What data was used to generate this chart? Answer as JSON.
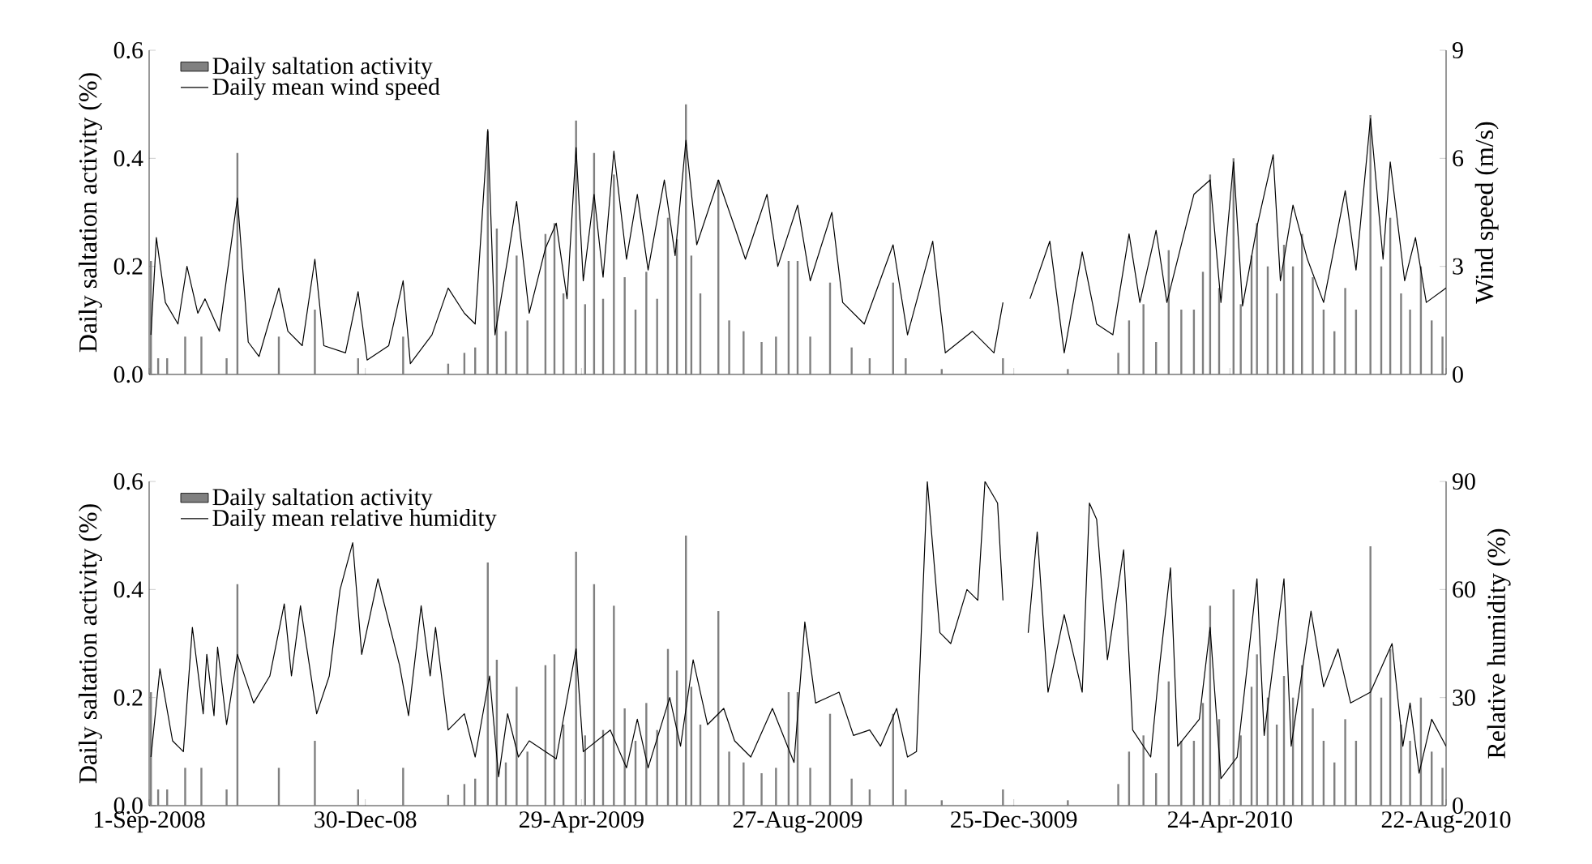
{
  "chart_data": [
    {
      "type": "bar",
      "ylabel": "Daily saltation activity (%)",
      "y2label": "Wind speed (m/s)",
      "legend": "top left",
      "tick_labels": "y",
      "xlim": [
        "2008-09-01",
        "2010-08-22"
      ],
      "xticks": [
        {
          "value": "2008-09-01",
          "label": null
        },
        {
          "value": "2008-12-30",
          "label": null
        },
        {
          "value": "2009-04-29",
          "label": null
        },
        {
          "value": "2009-08-27",
          "label": null
        },
        {
          "value": "2009-12-25",
          "label": null
        },
        {
          "value": "2010-04-24",
          "label": null
        },
        {
          "value": "2010-08-22",
          "label": null
        }
      ],
      "ylim": [
        0,
        0.6
      ],
      "yticks": [
        {
          "value": 0,
          "label": "0.0"
        },
        {
          "value": 0.2,
          "label": "0.2"
        },
        {
          "value": 0.4,
          "label": "0.4"
        },
        {
          "value": 0.6,
          "label": "0.6"
        }
      ],
      "y2lim": [
        0,
        9
      ],
      "y2ticks": [
        0,
        3,
        6,
        9
      ],
      "series": [
        {
          "name": "Daily saltation activity",
          "color": "#808080",
          "x": [
            "2008-09-02",
            "2008-09-06",
            "2008-09-11",
            "2008-09-21",
            "2008-09-30",
            "2008-10-14",
            "2008-10-20",
            "2008-11-12",
            "2008-12-02",
            "2008-12-26",
            "2009-01-20",
            "2009-02-14",
            "2009-02-23",
            "2009-03-01",
            "2009-03-08",
            "2009-03-13",
            "2009-03-18",
            "2009-03-24",
            "2009-03-30",
            "2009-04-09",
            "2009-04-14",
            "2009-04-19",
            "2009-04-26",
            "2009-05-01",
            "2009-05-06",
            "2009-05-11",
            "2009-05-17",
            "2009-05-23",
            "2009-05-29",
            "2009-06-04",
            "2009-06-10",
            "2009-06-16",
            "2009-06-21",
            "2009-06-26",
            "2009-06-29",
            "2009-07-04",
            "2009-07-14",
            "2009-07-20",
            "2009-07-28",
            "2009-08-07",
            "2009-08-15",
            "2009-08-22",
            "2009-08-27",
            "2009-09-03",
            "2009-09-14",
            "2009-09-26",
            "2009-10-06",
            "2009-10-19",
            "2009-10-26",
            "2009-11-15",
            "2009-12-19",
            "2010-01-24",
            "2010-02-21",
            "2010-02-27",
            "2010-03-07",
            "2010-03-14",
            "2010-03-21",
            "2010-03-28",
            "2010-04-04",
            "2010-04-09",
            "2010-04-13",
            "2010-04-18",
            "2010-04-26",
            "2010-04-30",
            "2010-05-06",
            "2010-05-09",
            "2010-05-15",
            "2010-05-20",
            "2010-05-24",
            "2010-05-29",
            "2010-06-03",
            "2010-06-09",
            "2010-06-15",
            "2010-06-21",
            "2010-06-27",
            "2010-07-03",
            "2010-07-11",
            "2010-07-17",
            "2010-07-22",
            "2010-07-28",
            "2010-08-02",
            "2010-08-08",
            "2010-08-14",
            "2010-08-20"
          ],
          "values": [
            0.21,
            0.03,
            0.03,
            0.07,
            0.07,
            0.03,
            0.41,
            0.07,
            0.12,
            0.03,
            0.07,
            0.02,
            0.04,
            0.05,
            0.45,
            0.27,
            0.08,
            0.22,
            0.1,
            0.26,
            0.28,
            0.15,
            0.47,
            0.13,
            0.41,
            0.14,
            0.37,
            0.18,
            0.12,
            0.19,
            0.14,
            0.29,
            0.25,
            0.5,
            0.22,
            0.15,
            0.36,
            0.1,
            0.08,
            0.06,
            0.07,
            0.21,
            0.21,
            0.07,
            0.17,
            0.05,
            0.03,
            0.17,
            0.03,
            0.01,
            0.03,
            0.01,
            0.04,
            0.1,
            0.13,
            0.06,
            0.23,
            0.12,
            0.12,
            0.19,
            0.37,
            0.16,
            0.4,
            0.13,
            0.22,
            0.28,
            0.2,
            0.15,
            0.24,
            0.2,
            0.26,
            0.18,
            0.12,
            0.08,
            0.16,
            0.12,
            0.48,
            0.2,
            0.29,
            0.15,
            0.12,
            0.2,
            0.1,
            0.07
          ]
        },
        {
          "name": "Daily mean wind speed",
          "type": "line",
          "axis": "y2",
          "color": "#000000",
          "x": [
            "2008-09-02",
            "2008-09-05",
            "2008-09-10",
            "2008-09-17",
            "2008-09-22",
            "2008-09-28",
            "2008-10-02",
            "2008-10-10",
            "2008-10-20",
            "2008-10-26",
            "2008-11-01",
            "2008-11-12",
            "2008-11-17",
            "2008-11-25",
            "2008-12-02",
            "2008-12-07",
            "2008-12-19",
            "2008-12-26",
            "2008-12-31",
            "2009-01-12",
            "2009-01-20",
            "2009-01-24",
            "2009-02-05",
            "2009-02-14",
            "2009-02-23",
            "2009-03-01",
            "2009-03-08",
            "2009-03-12",
            "2009-03-19",
            "2009-03-24",
            "2009-03-31",
            "2009-04-09",
            "2009-04-15",
            "2009-04-21",
            "2009-04-26",
            "2009-04-30",
            "2009-05-06",
            "2009-05-11",
            "2009-05-17",
            "2009-05-24",
            "2009-05-30",
            "2009-06-05",
            "2009-06-14",
            "2009-06-20",
            "2009-06-26",
            "2009-07-02",
            "2009-07-14",
            "2009-07-23",
            "2009-07-29",
            "2009-08-10",
            "2009-08-16",
            "2009-08-27",
            "2009-09-03",
            "2009-09-15",
            "2009-09-21",
            "2009-10-03",
            "2009-10-19",
            "2009-10-27",
            "2009-11-10",
            "2009-11-17",
            "2009-12-02",
            "2009-12-14",
            "2009-12-19",
            "2009-12-25",
            "2010-01-03",
            "2010-01-14",
            "2010-01-22",
            "2010-02-01",
            "2010-02-09",
            "2010-02-18",
            "2010-02-27",
            "2010-03-05",
            "2010-03-14",
            "2010-03-20",
            "2010-04-04",
            "2010-04-13",
            "2010-04-19",
            "2010-04-26",
            "2010-05-01",
            "2010-05-09",
            "2010-05-18",
            "2010-05-22",
            "2010-05-29",
            "2010-06-06",
            "2010-06-15",
            "2010-06-27",
            "2010-07-03",
            "2010-07-11",
            "2010-07-18",
            "2010-07-22",
            "2010-07-30",
            "2010-08-05",
            "2010-08-11",
            "2010-08-22"
          ],
          "values": [
            1.1,
            3.8,
            2.0,
            1.4,
            3.0,
            1.7,
            2.1,
            1.2,
            4.9,
            0.9,
            0.5,
            2.4,
            1.2,
            0.8,
            3.2,
            0.8,
            0.6,
            2.3,
            0.4,
            0.8,
            2.6,
            0.3,
            1.1,
            2.4,
            1.7,
            1.4,
            6.8,
            1.1,
            3.2,
            4.8,
            1.7,
            3.5,
            4.2,
            2.1,
            6.3,
            2.6,
            5.0,
            2.7,
            6.2,
            3.2,
            5.0,
            2.9,
            5.4,
            3.3,
            6.5,
            3.6,
            5.4,
            4.1,
            3.2,
            5.0,
            3.0,
            4.7,
            2.6,
            4.5,
            2.0,
            1.4,
            3.6,
            1.1,
            3.7,
            0.6,
            1.2,
            0.6,
            2.0,
            null,
            2.1,
            3.7,
            0.6,
            3.4,
            1.4,
            1.1,
            3.9,
            2.0,
            4.0,
            2.0,
            5.0,
            5.4,
            2.0,
            5.9,
            1.9,
            4.1,
            6.1,
            2.6,
            4.7,
            3.2,
            2.0,
            5.1,
            2.9,
            7.1,
            3.2,
            5.9,
            2.6,
            3.8,
            2.0,
            2.4
          ]
        }
      ]
    },
    {
      "type": "bar",
      "ylabel": "Daily saltation activity (%)",
      "y2label": "Relative humidity (%)",
      "legend": "top left",
      "xlim": [
        "2008-09-01",
        "2010-08-22"
      ],
      "xticks": [
        {
          "value": "2008-09-01",
          "label": "1-Sep-2008"
        },
        {
          "value": "2008-12-30",
          "label": "30-Dec-08"
        },
        {
          "value": "2009-04-29",
          "label": "29-Apr-2009"
        },
        {
          "value": "2009-08-27",
          "label": "27-Aug-2009"
        },
        {
          "value": "2009-12-25",
          "label": "25-Dec-3009"
        },
        {
          "value": "2010-04-24",
          "label": "24-Apr-2010"
        },
        {
          "value": "2010-08-22",
          "label": "22-Aug-2010"
        }
      ],
      "ylim": [
        0,
        0.6
      ],
      "yticks": [
        {
          "value": 0,
          "label": "0.0"
        },
        {
          "value": 0.2,
          "label": "0.2"
        },
        {
          "value": 0.4,
          "label": "0.4"
        },
        {
          "value": 0.6,
          "label": "0.6"
        }
      ],
      "y2lim": [
        0,
        90
      ],
      "y2ticks": [
        0,
        30,
        60,
        90
      ],
      "series": [
        {
          "name": "Daily saltation activity",
          "color": "#808080",
          "x": [
            "2008-09-02",
            "2008-09-06",
            "2008-09-11",
            "2008-09-21",
            "2008-09-30",
            "2008-10-14",
            "2008-10-20",
            "2008-11-12",
            "2008-12-02",
            "2008-12-26",
            "2009-01-20",
            "2009-02-14",
            "2009-02-23",
            "2009-03-01",
            "2009-03-08",
            "2009-03-13",
            "2009-03-18",
            "2009-03-24",
            "2009-03-30",
            "2009-04-09",
            "2009-04-14",
            "2009-04-19",
            "2009-04-26",
            "2009-05-01",
            "2009-05-06",
            "2009-05-11",
            "2009-05-17",
            "2009-05-23",
            "2009-05-29",
            "2009-06-04",
            "2009-06-10",
            "2009-06-16",
            "2009-06-21",
            "2009-06-26",
            "2009-06-29",
            "2009-07-04",
            "2009-07-14",
            "2009-07-20",
            "2009-07-28",
            "2009-08-07",
            "2009-08-15",
            "2009-08-22",
            "2009-08-27",
            "2009-09-03",
            "2009-09-14",
            "2009-09-26",
            "2009-10-06",
            "2009-10-19",
            "2009-10-26",
            "2009-11-15",
            "2009-12-19",
            "2010-01-24",
            "2010-02-21",
            "2010-02-27",
            "2010-03-07",
            "2010-03-14",
            "2010-03-21",
            "2010-03-28",
            "2010-04-04",
            "2010-04-09",
            "2010-04-13",
            "2010-04-18",
            "2010-04-26",
            "2010-04-30",
            "2010-05-06",
            "2010-05-09",
            "2010-05-15",
            "2010-05-20",
            "2010-05-24",
            "2010-05-29",
            "2010-06-03",
            "2010-06-09",
            "2010-06-15",
            "2010-06-21",
            "2010-06-27",
            "2010-07-03",
            "2010-07-11",
            "2010-07-17",
            "2010-07-22",
            "2010-07-28",
            "2010-08-02",
            "2010-08-08",
            "2010-08-14",
            "2010-08-20"
          ],
          "values": [
            0.21,
            0.03,
            0.03,
            0.07,
            0.07,
            0.03,
            0.41,
            0.07,
            0.12,
            0.03,
            0.07,
            0.02,
            0.04,
            0.05,
            0.45,
            0.27,
            0.08,
            0.22,
            0.1,
            0.26,
            0.28,
            0.15,
            0.47,
            0.13,
            0.41,
            0.14,
            0.37,
            0.18,
            0.12,
            0.19,
            0.14,
            0.29,
            0.25,
            0.5,
            0.22,
            0.15,
            0.36,
            0.1,
            0.08,
            0.06,
            0.07,
            0.21,
            0.21,
            0.07,
            0.17,
            0.05,
            0.03,
            0.17,
            0.03,
            0.01,
            0.03,
            0.01,
            0.04,
            0.1,
            0.13,
            0.06,
            0.23,
            0.12,
            0.12,
            0.19,
            0.37,
            0.16,
            0.4,
            0.13,
            0.22,
            0.28,
            0.2,
            0.15,
            0.24,
            0.2,
            0.26,
            0.18,
            0.12,
            0.08,
            0.16,
            0.12,
            0.48,
            0.2,
            0.29,
            0.15,
            0.12,
            0.2,
            0.1,
            0.07
          ]
        },
        {
          "name": "Daily mean relative humidity",
          "type": "line",
          "axis": "y2",
          "color": "#000000",
          "x": [
            "2008-09-02",
            "2008-09-07",
            "2008-09-14",
            "2008-09-20",
            "2008-09-25",
            "2008-10-01",
            "2008-10-03",
            "2008-10-07",
            "2008-10-09",
            "2008-10-14",
            "2008-10-20",
            "2008-10-29",
            "2008-11-07",
            "2008-11-15",
            "2008-11-19",
            "2008-11-24",
            "2008-12-03",
            "2008-12-10",
            "2008-12-16",
            "2008-12-23",
            "2008-12-28",
            "2009-01-06",
            "2009-01-12",
            "2009-01-18",
            "2009-01-23",
            "2009-01-30",
            "2009-02-04",
            "2009-02-07",
            "2009-02-14",
            "2009-02-23",
            "2009-03-01",
            "2009-03-09",
            "2009-03-14",
            "2009-03-19",
            "2009-03-25",
            "2009-03-31",
            "2009-04-15",
            "2009-04-26",
            "2009-04-30",
            "2009-05-15",
            "2009-05-24",
            "2009-05-30",
            "2009-06-05",
            "2009-06-17",
            "2009-06-23",
            "2009-06-30",
            "2009-07-08",
            "2009-07-17",
            "2009-07-23",
            "2009-08-01",
            "2009-08-13",
            "2009-08-25",
            "2009-08-31",
            "2009-09-06",
            "2009-09-19",
            "2009-09-27",
            "2009-10-06",
            "2009-10-12",
            "2009-10-21",
            "2009-10-27",
            "2009-11-01",
            "2009-11-07",
            "2009-11-14",
            "2009-11-20",
            "2009-11-29",
            "2009-12-05",
            "2009-12-09",
            "2009-12-16",
            "2009-12-19",
            "2009-12-25",
            "2010-01-02",
            "2010-01-07",
            "2010-01-13",
            "2010-01-22",
            "2010-02-01",
            "2010-02-05",
            "2010-02-09",
            "2010-02-15",
            "2010-02-24",
            "2010-03-01",
            "2010-03-11",
            "2010-03-16",
            "2010-03-22",
            "2010-03-26",
            "2010-04-07",
            "2010-04-13",
            "2010-04-19",
            "2010-04-28",
            "2010-05-09",
            "2010-05-13",
            "2010-05-24",
            "2010-05-28",
            "2010-06-08",
            "2010-06-15",
            "2010-06-23",
            "2010-06-30",
            "2010-07-11",
            "2010-07-23",
            "2010-07-29",
            "2010-08-02",
            "2010-08-07",
            "2010-08-14",
            "2010-08-22"
          ],
          "values": [
            13.5,
            38,
            18,
            15,
            49.5,
            25.5,
            42,
            25,
            44,
            22.5,
            42,
            28.5,
            36,
            56,
            36,
            55.5,
            25.5,
            36,
            60,
            73,
            42,
            63,
            51,
            39,
            25,
            55.5,
            36,
            49.5,
            21,
            25.5,
            13.5,
            36,
            8,
            25.5,
            13.5,
            18,
            13,
            43.5,
            15,
            21,
            10.5,
            24,
            10.5,
            30,
            16.5,
            40.5,
            22.5,
            27,
            18,
            13.5,
            27,
            12,
            51,
            28.5,
            31.5,
            19.5,
            21,
            16.5,
            27,
            13.5,
            15,
            90,
            48,
            45,
            60,
            57,
            90,
            84,
            57,
            null,
            48,
            76,
            31.5,
            53,
            31.5,
            84,
            79.5,
            40.5,
            71,
            21,
            13.5,
            39,
            66,
            16.5,
            24,
            49.5,
            7.5,
            13.5,
            63,
            19.5,
            63,
            16.5,
            54,
            33,
            43.5,
            28.5,
            31.5,
            45,
            16.5,
            28.5,
            9,
            24,
            16.5
          ]
        }
      ]
    }
  ]
}
